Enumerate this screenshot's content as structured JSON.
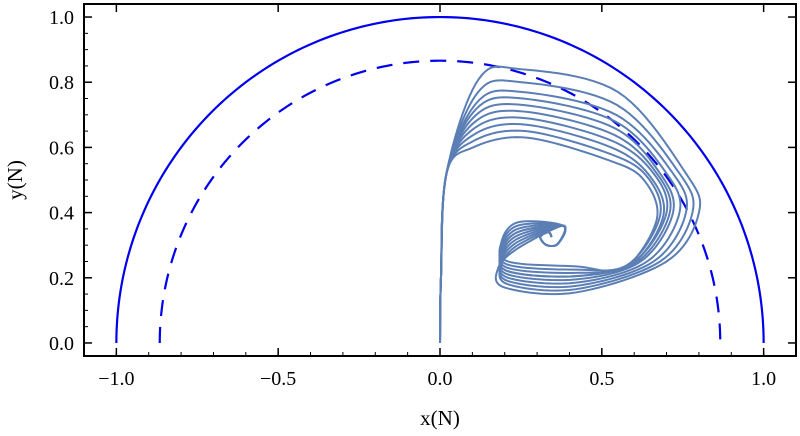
{
  "chart_data": {
    "type": "line",
    "title": "",
    "xlabel": "x(N)",
    "ylabel": "y(N)",
    "xlim": [
      -1.1,
      1.1
    ],
    "ylim": [
      -0.04,
      1.04
    ],
    "x_ticks": [
      {
        "value": -1.0,
        "label": "−1.0"
      },
      {
        "value": -0.5,
        "label": "−0.5"
      },
      {
        "value": 0.0,
        "label": "0.0"
      },
      {
        "value": 0.5,
        "label": "0.5"
      },
      {
        "value": 1.0,
        "label": "1.0"
      }
    ],
    "y_ticks": [
      {
        "value": 0.0,
        "label": "0.0"
      },
      {
        "value": 0.2,
        "label": "0.2"
      },
      {
        "value": 0.4,
        "label": "0.4"
      },
      {
        "value": 0.6,
        "label": "0.6"
      },
      {
        "value": 0.8,
        "label": "0.8"
      },
      {
        "value": 1.0,
        "label": "1.0"
      }
    ],
    "grid": false,
    "legend": "none",
    "series": [
      {
        "style": "solid",
        "color": "#0000ee",
        "curve": "semicircle",
        "radius": 1.0,
        "x": [
          -1.0,
          -0.866,
          -0.5,
          0.0,
          0.5,
          0.866,
          1.0
        ],
        "y": [
          0.0,
          0.5,
          0.866,
          1.0,
          0.866,
          0.5,
          0.0
        ]
      },
      {
        "style": "dashed",
        "color": "#0000ee",
        "curve": "semicircle",
        "radius": 0.866,
        "x": [
          -0.866,
          -0.75,
          -0.433,
          0.0,
          0.433,
          0.75,
          0.866
        ],
        "y": [
          0.0,
          0.433,
          0.75,
          0.866,
          0.75,
          0.433,
          0.0
        ]
      },
      {
        "style": "solid",
        "color": "#5b7fb5",
        "curve": "family of trajectories from (0,0) spiraling into (0.33, 0.32)",
        "trajectories": [
          {
            "apex_y": 0.84,
            "right_x": 0.8,
            "right_y": 0.4,
            "bottom_x": 0.17,
            "bottom_y": 0.15
          },
          {
            "apex_y": 0.8,
            "right_x": 0.78,
            "right_y": 0.4,
            "bottom_x": 0.18,
            "bottom_y": 0.16
          },
          {
            "apex_y": 0.77,
            "right_x": 0.76,
            "right_y": 0.4,
            "bottom_x": 0.18,
            "bottom_y": 0.17
          },
          {
            "apex_y": 0.75,
            "right_x": 0.74,
            "right_y": 0.4,
            "bottom_x": 0.18,
            "bottom_y": 0.18
          },
          {
            "apex_y": 0.73,
            "right_x": 0.72,
            "right_y": 0.4,
            "bottom_x": 0.18,
            "bottom_y": 0.19
          },
          {
            "apex_y": 0.71,
            "right_x": 0.71,
            "right_y": 0.4,
            "bottom_x": 0.18,
            "bottom_y": 0.2
          },
          {
            "apex_y": 0.69,
            "right_x": 0.7,
            "right_y": 0.4,
            "bottom_x": 0.18,
            "bottom_y": 0.2
          },
          {
            "apex_y": 0.67,
            "right_x": 0.69,
            "right_y": 0.39,
            "bottom_x": 0.18,
            "bottom_y": 0.21
          },
          {
            "apex_y": 0.65,
            "right_x": 0.68,
            "right_y": 0.39,
            "bottom_x": 0.18,
            "bottom_y": 0.22
          },
          {
            "apex_y": 0.63,
            "right_x": 0.67,
            "right_y": 0.38,
            "bottom_x": 0.18,
            "bottom_y": 0.23
          }
        ],
        "spiral_center": [
          0.33,
          0.32
        ]
      }
    ]
  }
}
